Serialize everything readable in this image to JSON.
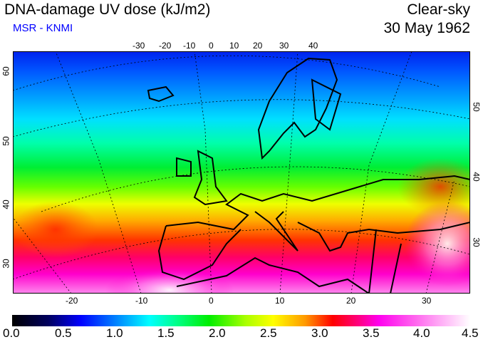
{
  "header": {
    "title": "DNA-damage UV dose (kJ/m2)",
    "source": "MSR - KNMI",
    "sky": "Clear-sky",
    "date": "30 May 1962"
  },
  "axes": {
    "top_lon": [
      "-30",
      "-20",
      "-10",
      "0",
      "10",
      "20",
      "30",
      "40"
    ],
    "bottom_lon": [
      "-20",
      "-10",
      "0",
      "10",
      "20",
      "30"
    ],
    "left_lat": [
      "60",
      "50",
      "40",
      "30"
    ],
    "right_lat": [
      "50",
      "40",
      "30"
    ]
  },
  "colorbar": {
    "labels": [
      "0.0",
      "0.5",
      "1.0",
      "1.5",
      "2.0",
      "2.5",
      "3.0",
      "3.5",
      "4.0",
      "4.5"
    ],
    "min": 0.0,
    "max": 4.5,
    "colors": [
      "#000000",
      "#0000ff",
      "#00ffff",
      "#00ee00",
      "#ffff00",
      "#ff0000",
      "#ff00ee",
      "#ffffff"
    ]
  }
}
